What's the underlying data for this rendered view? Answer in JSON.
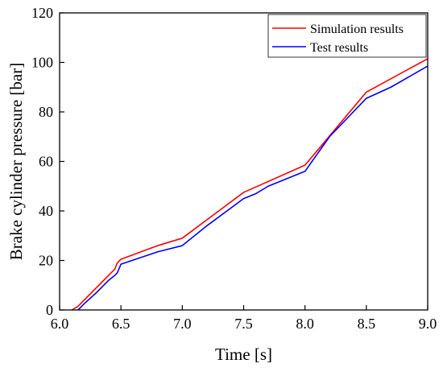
{
  "chart_data": {
    "type": "line",
    "xlabel": "Time [s]",
    "ylabel": "Brake cylinder pressure [bar]",
    "xlim": [
      6.0,
      9.0
    ],
    "ylim": [
      0,
      120
    ],
    "xticks": [
      "6.0",
      "6.5",
      "7.0",
      "7.5",
      "8.0",
      "8.5",
      "9.0"
    ],
    "yticks": [
      "0",
      "20",
      "40",
      "60",
      "80",
      "100",
      "120"
    ],
    "grid": false,
    "legend_position": "top-right",
    "series": [
      {
        "name": "Simulation results",
        "color": "#ff0000",
        "x": [
          6.1,
          6.15,
          6.2,
          6.3,
          6.4,
          6.45,
          6.47,
          6.5,
          6.8,
          7.0,
          7.5,
          8.0,
          8.5,
          9.0
        ],
        "y": [
          0,
          1.5,
          4,
          9,
          14,
          16.5,
          19,
          20.5,
          26,
          29,
          47.5,
          58.5,
          88,
          101.5
        ]
      },
      {
        "name": "Test results",
        "color": "#0000ff",
        "x": [
          6.15,
          6.17,
          6.2,
          6.3,
          6.4,
          6.45,
          6.47,
          6.5,
          6.8,
          7.0,
          7.2,
          7.5,
          7.6,
          7.7,
          8.0,
          8.2,
          8.5,
          8.7,
          9.0
        ],
        "y": [
          0,
          1,
          2.5,
          7,
          12,
          14,
          15,
          18.5,
          23.5,
          26,
          34,
          45,
          47,
          50,
          56,
          70,
          85.5,
          90,
          98.5
        ]
      }
    ]
  }
}
